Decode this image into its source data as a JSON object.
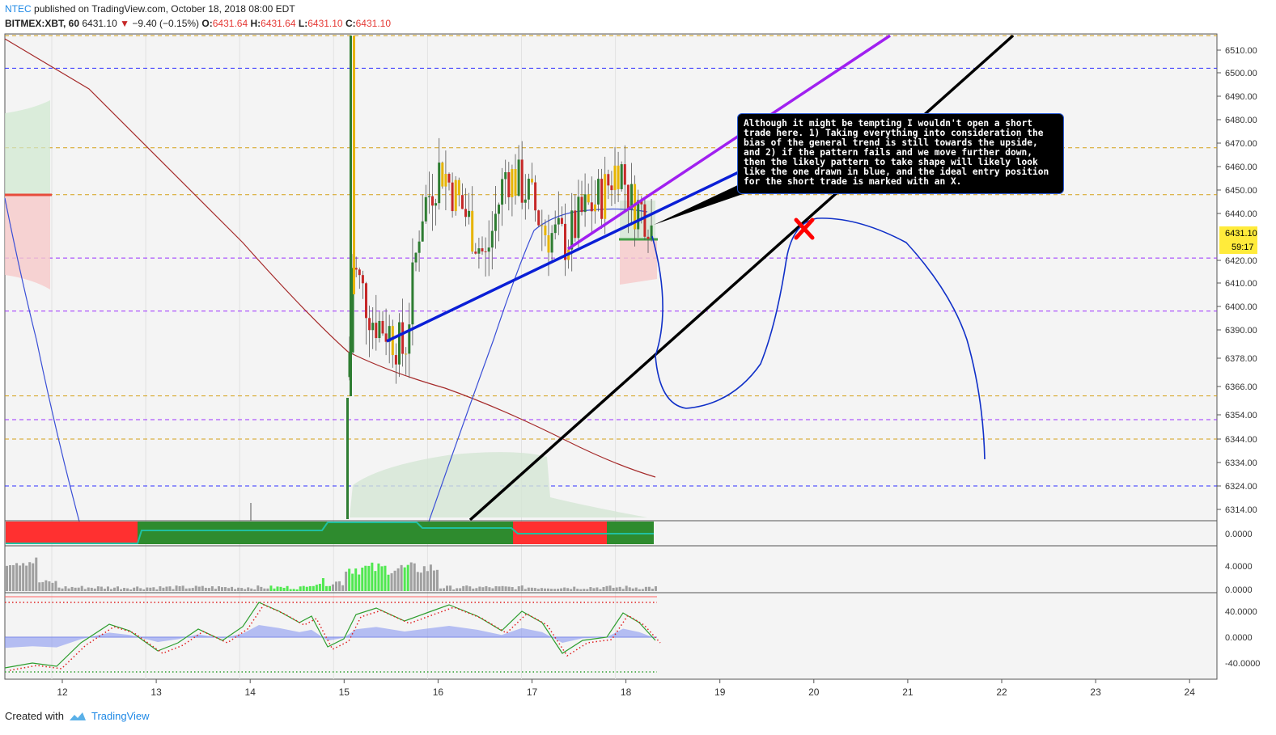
{
  "header": {
    "author": "NTEC",
    "published": "published on TradingView.com, October 18, 2018 08:00 EDT",
    "symbol": "BITMEX:XBT, 60",
    "price": "6431.10",
    "change": "−9.40 (−0.15%)",
    "o_label": "O:",
    "o_value": "6431.64",
    "h_label": "H:",
    "h_value": "6431.64",
    "l_label": "L:",
    "l_value": "6431.10",
    "c_label": "C:",
    "c_value": "6431.10"
  },
  "annotation": {
    "text": "Although it might be tempting I wouldn't open a short trade here.  1) Taking everything into consideration the bias of the general trend is still towards the upside, and 2) if the pattern fails and we move further down, then the likely pattern to take shape will likely look like the one drawn in blue, and the ideal entry position for the short trade is marked with an X."
  },
  "price_badge": {
    "value": "6431.10",
    "countdown": "59:17",
    "color": "#ffeb3b"
  },
  "footer": {
    "created": "Created with",
    "brand": "TradingView"
  },
  "colors": {
    "candle_up": "#2e7d32",
    "candle_down": "#c62828",
    "candle_yellow": "#e6b400",
    "blue_trend": "#0a1fd6",
    "purple_trend": "#a020f0",
    "black_trend": "#000000",
    "ma_red": "#a52a2a",
    "ma_blue": "#3a4fd6",
    "projection": "#1030c8",
    "x_mark": "#ff0000"
  },
  "chart_data": [
    {
      "type": "candlestick",
      "title": "",
      "symbol": "BITMEX:XBT, 60",
      "x_labels": [
        "12",
        "13",
        "14",
        "15",
        "16",
        "17",
        "18",
        "19",
        "20",
        "21",
        "22",
        "23",
        "24"
      ],
      "y_ticks": [
        "6510.00",
        "6500.00",
        "6490.00",
        "6480.00",
        "6470.00",
        "6460.00",
        "6450.00",
        "6440.00",
        "6420.00",
        "6410.00",
        "6400.00",
        "6390.00",
        "6378.00",
        "6366.00",
        "6354.00",
        "6344.00",
        "6334.00",
        "6324.00",
        "6314.00"
      ],
      "horizontal_levels": [
        {
          "value": 6502,
          "color": "#3030ff",
          "style": "dashed"
        },
        {
          "value": 6468,
          "color": "#d4a017",
          "style": "dashed"
        },
        {
          "value": 6448,
          "color": "#d4a017",
          "style": "dashed"
        },
        {
          "value": 6421,
          "color": "#9b30ff",
          "style": "dashed"
        },
        {
          "value": 6398,
          "color": "#9b30ff",
          "style": "dashed"
        },
        {
          "value": 6362,
          "color": "#d4a017",
          "style": "dashed"
        },
        {
          "value": 6352,
          "color": "#9b30ff",
          "style": "dashed"
        },
        {
          "value": 6344,
          "color": "#d4a017",
          "style": "dashed"
        },
        {
          "value": 6324,
          "color": "#3030ff",
          "style": "dashed"
        }
      ],
      "last_price": 6431.1
    },
    {
      "type": "bar",
      "title": "",
      "y_ticks": [
        "0.0000"
      ]
    },
    {
      "type": "bar",
      "title": "",
      "y_ticks": [
        "4.0000",
        "0.0000"
      ]
    },
    {
      "type": "line",
      "title": "",
      "y_ticks": [
        "40.0000",
        "0.0000",
        "-40.0000"
      ]
    }
  ]
}
